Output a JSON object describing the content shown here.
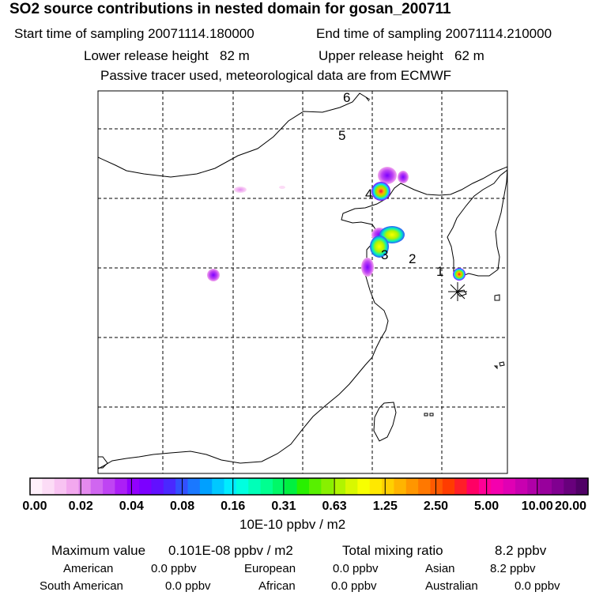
{
  "header": {
    "title": "SO2 source contributions in nested domain for gosan_200711",
    "start_sampling": "Start time of sampling 20071114.180000",
    "end_sampling": "End time of sampling 20071114.210000",
    "lower_release": "Lower release height   82 m",
    "upper_release": "Upper release height   62 m",
    "tracer_note": "Passive tracer used, meteorological data are from ECMWF"
  },
  "map": {
    "region_labels": [
      "1",
      "2",
      "3",
      "4",
      "5",
      "6"
    ],
    "receptor_marker": "asterisk"
  },
  "legend": {
    "tick_labels": [
      "0.00",
      "0.02",
      "0.04",
      "0.08",
      "0.16",
      "0.31",
      "0.63",
      "1.25",
      "2.50",
      "5.00",
      "10.00",
      "20.00"
    ],
    "unit_label": "10E-10 ppbv / m2",
    "colors": [
      "#fff0fb",
      "#fcdcf6",
      "#f8c3f2",
      "#f2a8ee",
      "#e48aee",
      "#d066f0",
      "#bf44f3",
      "#ac1ff6",
      "#9200ff",
      "#7c00ff",
      "#6210ff",
      "#4a28ff",
      "#3250ff",
      "#1a78ff",
      "#00a0ff",
      "#00c8ff",
      "#00ecff",
      "#00ffe0",
      "#00ffb8",
      "#00ff90",
      "#00f868",
      "#00f040",
      "#28f000",
      "#58f000",
      "#88f000",
      "#b0f400",
      "#d8f800",
      "#f8ff00",
      "#ffe800",
      "#ffd000",
      "#ffb400",
      "#ff9600",
      "#ff7800",
      "#ff5a00",
      "#ff3c00",
      "#ff1e28",
      "#ff0064",
      "#ff0096",
      "#f400ae",
      "#e000b4",
      "#c800b0",
      "#b000a8",
      "#98009c",
      "#800090",
      "#68007c",
      "#500066"
    ]
  },
  "stats": {
    "max_label": "Maximum value",
    "max_value": "0.101E-08 ppbv / m2",
    "total_label": "Total mixing ratio",
    "total_value": "8.2 ppbv",
    "regions": [
      {
        "name": "American",
        "value": "0.0 ppbv"
      },
      {
        "name": "European",
        "value": "0.0 ppbv"
      },
      {
        "name": "Asian",
        "value": "8.2 ppbv"
      },
      {
        "name": "South American",
        "value": "0.0 ppbv"
      },
      {
        "name": "African",
        "value": "0.0 ppbv"
      },
      {
        "name": "Australian",
        "value": "0.0 ppbv"
      }
    ]
  }
}
